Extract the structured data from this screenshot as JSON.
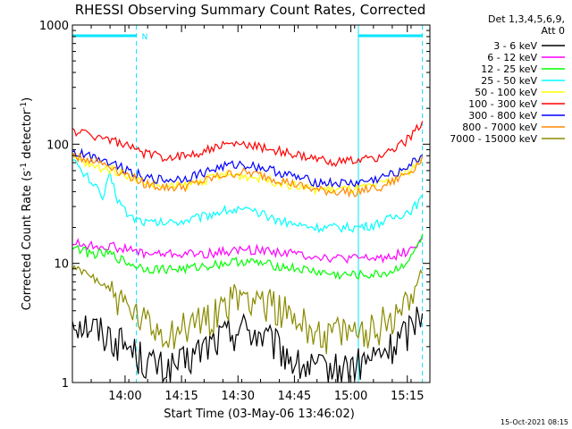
{
  "chart_data": {
    "type": "line",
    "title": "RHESSI Observing Summary Count Rates, Corrected",
    "xlabel": "Start Time (03-May-06 13:46:02)",
    "ylabel_main": "Corrected Count Rate (s",
    "ylabel_sup1": "-1",
    "ylabel_mid": " detector",
    "ylabel_sup2": "-1",
    "ylabel_end": ")",
    "y_scale": "log",
    "ylim": [
      1,
      1000
    ],
    "xlim_minutes": [
      0,
      95
    ],
    "y_ticks": [
      "1",
      "10",
      "100",
      "1000"
    ],
    "x_ticks": [
      {
        "label": "14:00",
        "minute": 14
      },
      {
        "label": "14:15",
        "minute": 29
      },
      {
        "label": "14:30",
        "minute": 44
      },
      {
        "label": "14:45",
        "minute": 59
      },
      {
        "label": "15:00",
        "minute": 74
      },
      {
        "label": "15:15",
        "minute": 89
      }
    ],
    "legend_header": [
      "Det 1,3,4,5,6,9,",
      "Att 0"
    ],
    "legend_position": "right",
    "annotation": "N",
    "night_intervals_minutes": [
      [
        0,
        17
      ],
      [
        76,
        93
      ]
    ],
    "timestamp": "15-Oct-2021 08:15",
    "series": [
      {
        "name": "3 - 6 keV",
        "color": "#000000",
        "x": [
          0,
          5,
          10,
          15,
          20,
          25,
          30,
          35,
          40,
          45,
          50,
          55,
          60,
          65,
          70,
          75,
          80,
          85,
          90,
          93
        ],
        "y": [
          3.5,
          3.0,
          2.5,
          2.0,
          1.5,
          1.3,
          1.5,
          2.0,
          2.5,
          3.0,
          2.5,
          2.0,
          1.4,
          1.3,
          1.3,
          1.4,
          1.6,
          2.0,
          3.0,
          4.5
        ]
      },
      {
        "name": "6 - 12 keV",
        "color": "#ff00ff",
        "x": [
          0,
          5,
          10,
          15,
          20,
          25,
          30,
          35,
          40,
          45,
          50,
          55,
          60,
          65,
          70,
          75,
          80,
          85,
          90,
          93
        ],
        "y": [
          15,
          14,
          14,
          13,
          12,
          12,
          12,
          12,
          12.5,
          13,
          13,
          12.5,
          12,
          11.5,
          11,
          11,
          11,
          11.5,
          13,
          16
        ]
      },
      {
        "name": "12 - 25 keV",
        "color": "#00ff00",
        "x": [
          0,
          5,
          10,
          15,
          20,
          25,
          30,
          35,
          40,
          45,
          50,
          55,
          60,
          65,
          70,
          75,
          80,
          85,
          90,
          93
        ],
        "y": [
          14,
          12,
          12,
          10,
          9,
          9,
          9,
          9.5,
          10,
          10.5,
          10,
          9.5,
          9,
          8.5,
          8,
          8,
          8,
          8.5,
          11,
          17
        ]
      },
      {
        "name": "25 - 50 keV",
        "color": "#00ffff",
        "x": [
          0,
          2,
          5,
          8,
          10,
          12,
          15,
          20,
          25,
          30,
          35,
          40,
          45,
          50,
          55,
          60,
          65,
          70,
          75,
          80,
          85,
          90,
          93
        ],
        "y": [
          80,
          60,
          50,
          35,
          55,
          35,
          25,
          22,
          22,
          23,
          25,
          28,
          28,
          26,
          23,
          21,
          20,
          20,
          20,
          21,
          24,
          28,
          35
        ]
      },
      {
        "name": "50 - 100 keV",
        "color": "#ffff00",
        "x": [
          0,
          5,
          10,
          15,
          20,
          25,
          30,
          35,
          40,
          45,
          50,
          55,
          60,
          65,
          70,
          75,
          80,
          85,
          90,
          93
        ],
        "y": [
          78,
          65,
          62,
          55,
          47,
          44,
          45,
          50,
          55,
          55,
          52,
          48,
          44,
          42,
          42,
          42,
          44,
          50,
          62,
          75
        ]
      },
      {
        "name": "100 - 300 keV",
        "color": "#ff0000",
        "x": [
          0,
          5,
          10,
          15,
          20,
          25,
          30,
          35,
          40,
          45,
          50,
          55,
          60,
          65,
          70,
          75,
          80,
          85,
          90,
          93
        ],
        "y": [
          130,
          120,
          110,
          95,
          82,
          78,
          80,
          88,
          98,
          100,
          95,
          88,
          80,
          74,
          72,
          72,
          76,
          88,
          115,
          160
        ]
      },
      {
        "name": "300 - 800 keV",
        "color": "#0000ff",
        "x": [
          0,
          5,
          10,
          15,
          20,
          25,
          30,
          35,
          40,
          45,
          50,
          55,
          60,
          65,
          70,
          75,
          80,
          85,
          90,
          93
        ],
        "y": [
          85,
          80,
          72,
          60,
          52,
          50,
          52,
          58,
          65,
          68,
          64,
          58,
          52,
          48,
          47,
          47,
          50,
          56,
          68,
          80
        ]
      },
      {
        "name": "800 - 7000 keV",
        "color": "#ff8800",
        "x": [
          0,
          5,
          10,
          15,
          20,
          25,
          30,
          35,
          40,
          45,
          50,
          55,
          60,
          65,
          70,
          75,
          80,
          85,
          90,
          93
        ],
        "y": [
          80,
          74,
          66,
          54,
          46,
          43,
          44,
          49,
          55,
          58,
          55,
          50,
          45,
          41,
          40,
          40,
          42,
          48,
          60,
          76
        ]
      },
      {
        "name": "7000 - 15000 keV",
        "color": "#8b8b00",
        "x": [
          0,
          5,
          10,
          15,
          20,
          25,
          30,
          35,
          40,
          45,
          50,
          55,
          60,
          65,
          70,
          75,
          80,
          85,
          90,
          93
        ],
        "y": [
          9,
          8,
          6,
          4,
          3,
          2.6,
          2.9,
          3.5,
          4.5,
          5.5,
          5.2,
          4.3,
          3.3,
          2.7,
          2.6,
          2.6,
          2.9,
          3.6,
          5.5,
          9
        ]
      }
    ]
  }
}
